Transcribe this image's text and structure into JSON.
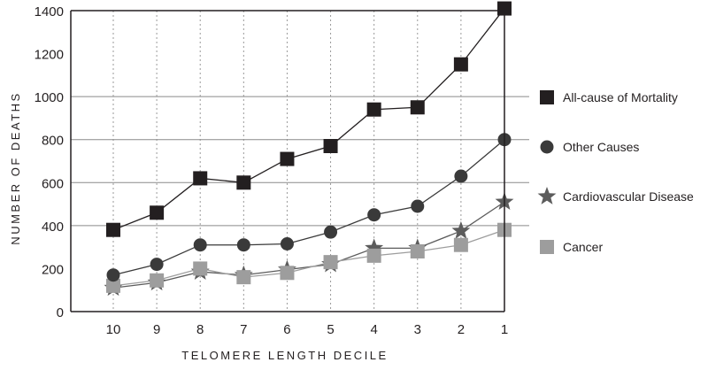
{
  "chart_data": {
    "type": "line",
    "title": "",
    "xlabel": "TELOMERE LENGTH DECILE",
    "ylabel": "NUMBER OF DEATHS",
    "categories": [
      "10",
      "9",
      "8",
      "7",
      "6",
      "5",
      "4",
      "3",
      "2",
      "1"
    ],
    "ylim": [
      0,
      1400
    ],
    "y_ticks": [
      "0",
      "200",
      "400",
      "600",
      "800",
      "1000",
      "1200",
      "1400"
    ],
    "y_tick_values": [
      0,
      200,
      400,
      600,
      800,
      1000,
      1200,
      1400
    ],
    "grid": "vertical dotted lines at each category; horizontal lines at 1000, 800, 600, 400",
    "legend_position": "right",
    "series": [
      {
        "name": "All-cause of Mortality",
        "marker": "square",
        "color": "#231f20",
        "values": [
          380,
          460,
          620,
          600,
          710,
          770,
          940,
          950,
          1150,
          1410
        ]
      },
      {
        "name": "Other Causes",
        "marker": "circle",
        "color": "#3a3a3a",
        "values": [
          170,
          220,
          310,
          310,
          315,
          370,
          450,
          490,
          630,
          800
        ]
      },
      {
        "name": "Cardiovascular Disease",
        "marker": "star",
        "color": "#5c5c5c",
        "values": [
          110,
          135,
          185,
          170,
          195,
          220,
          295,
          295,
          375,
          510
        ]
      },
      {
        "name": "Cancer",
        "marker": "square",
        "color": "#9d9d9d",
        "values": [
          120,
          145,
          200,
          160,
          180,
          230,
          260,
          280,
          310,
          380
        ]
      }
    ]
  }
}
